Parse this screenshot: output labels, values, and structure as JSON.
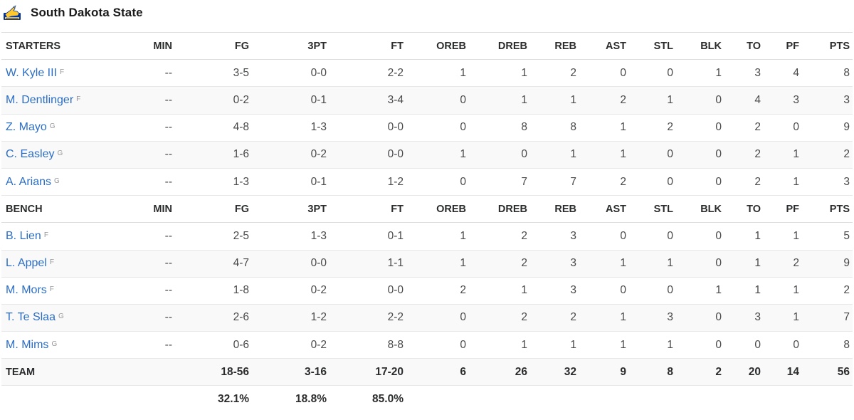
{
  "team": {
    "name": "South Dakota State",
    "logo_icon": "jackrabbit-logo-icon"
  },
  "columns": [
    "MIN",
    "FG",
    "3PT",
    "FT",
    "OREB",
    "DREB",
    "REB",
    "AST",
    "STL",
    "BLK",
    "TO",
    "PF",
    "PTS"
  ],
  "starters": {
    "label": "STARTERS",
    "players": [
      {
        "name": "W. Kyle III",
        "pos": "F",
        "stats": [
          "--",
          "3-5",
          "0-0",
          "2-2",
          "1",
          "1",
          "2",
          "0",
          "0",
          "1",
          "3",
          "4",
          "8"
        ]
      },
      {
        "name": "M. Dentlinger",
        "pos": "F",
        "stats": [
          "--",
          "0-2",
          "0-1",
          "3-4",
          "0",
          "1",
          "1",
          "2",
          "1",
          "0",
          "4",
          "3",
          "3"
        ]
      },
      {
        "name": "Z. Mayo",
        "pos": "G",
        "stats": [
          "--",
          "4-8",
          "1-3",
          "0-0",
          "0",
          "8",
          "8",
          "1",
          "2",
          "0",
          "2",
          "0",
          "9"
        ]
      },
      {
        "name": "C. Easley",
        "pos": "G",
        "stats": [
          "--",
          "1-6",
          "0-2",
          "0-0",
          "1",
          "0",
          "1",
          "1",
          "0",
          "0",
          "2",
          "1",
          "2"
        ]
      },
      {
        "name": "A. Arians",
        "pos": "G",
        "stats": [
          "--",
          "1-3",
          "0-1",
          "1-2",
          "0",
          "7",
          "7",
          "2",
          "0",
          "0",
          "2",
          "1",
          "3"
        ]
      }
    ]
  },
  "bench": {
    "label": "BENCH",
    "players": [
      {
        "name": "B. Lien",
        "pos": "F",
        "stats": [
          "--",
          "2-5",
          "1-3",
          "0-1",
          "1",
          "2",
          "3",
          "0",
          "0",
          "0",
          "1",
          "1",
          "5"
        ]
      },
      {
        "name": "L. Appel",
        "pos": "F",
        "stats": [
          "--",
          "4-7",
          "0-0",
          "1-1",
          "1",
          "2",
          "3",
          "1",
          "1",
          "0",
          "1",
          "2",
          "9"
        ]
      },
      {
        "name": "M. Mors",
        "pos": "F",
        "stats": [
          "--",
          "1-8",
          "0-2",
          "0-0",
          "2",
          "1",
          "3",
          "0",
          "0",
          "1",
          "1",
          "1",
          "2"
        ]
      },
      {
        "name": "T. Te Slaa",
        "pos": "G",
        "stats": [
          "--",
          "2-6",
          "1-2",
          "2-2",
          "0",
          "2",
          "2",
          "1",
          "3",
          "0",
          "3",
          "1",
          "7"
        ]
      },
      {
        "name": "M. Mims",
        "pos": "G",
        "stats": [
          "--",
          "0-6",
          "0-2",
          "8-8",
          "0",
          "1",
          "1",
          "1",
          "1",
          "0",
          "0",
          "0",
          "8"
        ]
      }
    ]
  },
  "totals": {
    "label": "TEAM",
    "stats": [
      "",
      "18-56",
      "3-16",
      "17-20",
      "6",
      "26",
      "32",
      "9",
      "8",
      "2",
      "20",
      "14",
      "56"
    ]
  },
  "percentages": {
    "stats": [
      "",
      "32.1%",
      "18.8%",
      "85.0%",
      "",
      "",
      "",
      "",
      "",
      "",
      "",
      "",
      ""
    ]
  },
  "colors": {
    "player_link": "#2b6dc6",
    "row_alt": "#f9f9fa",
    "border": "#e7e8ea"
  }
}
